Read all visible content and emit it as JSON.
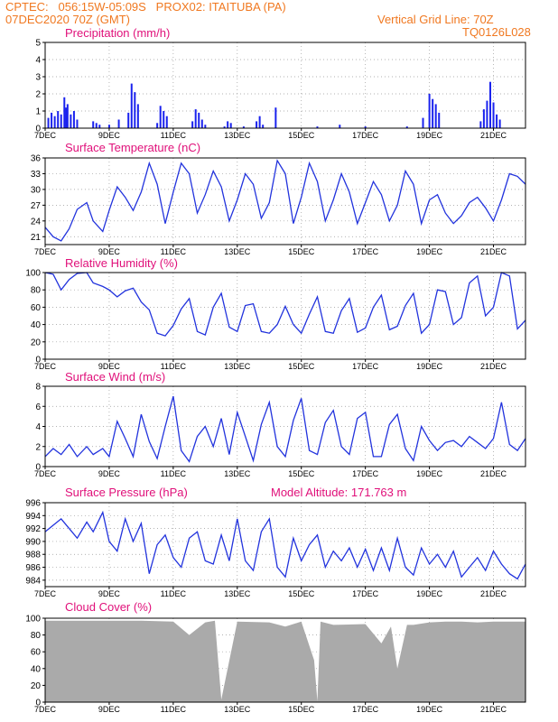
{
  "header": {
    "line1": "CPTEC:   056:15W-05:09S   PROX02: ITAITUBA (PA)",
    "line2_left": "07DEC2020 70Z (GMT)",
    "line2_right": "Vertical Grid Line: 70Z",
    "line3_right": "TQ0126L028"
  },
  "x_ticks": [
    "7DEC",
    "9DEC",
    "11DEC",
    "13DEC",
    "15DEC",
    "17DEC",
    "19DEC",
    "21DEC"
  ],
  "panels": {
    "precip": {
      "title": "Precipitation  (mm/h)"
    },
    "temp": {
      "title": "Surface Temperature  (nC)"
    },
    "rh": {
      "title": "Relative Humidity  (%)"
    },
    "wind": {
      "title": "Surface Wind  (m/s)"
    },
    "pres": {
      "title": "Surface Pressure  (hPa)",
      "note": "Model Altitude: 171.763  m"
    },
    "cloud": {
      "title": "Cloud Cover  (%)"
    }
  },
  "colors": {
    "line": "#2233dd",
    "bar": "#1a22ee",
    "cloud": "#aaaaaa",
    "title": "#e0107a",
    "header": "#f07820"
  },
  "chart_data": [
    {
      "type": "bar",
      "title": "Precipitation  (mm/h)",
      "ylim": [
        0,
        5
      ],
      "yticks": [
        0,
        1,
        2,
        3,
        4,
        5
      ],
      "x": [
        0.1,
        0.2,
        0.3,
        0.4,
        0.5,
        0.6,
        0.65,
        0.7,
        0.8,
        0.9,
        1.0,
        1.5,
        1.6,
        1.7,
        2.0,
        2.3,
        2.6,
        2.7,
        2.8,
        2.9,
        3.5,
        3.6,
        3.7,
        3.8,
        4.6,
        4.7,
        4.8,
        4.9,
        5.0,
        5.6,
        5.7,
        5.8,
        6.2,
        6.6,
        6.7,
        6.8,
        7.2,
        8.5,
        9.2,
        10.0,
        11.3,
        11.8,
        12.0,
        12.1,
        12.2,
        12.3,
        13.6,
        13.7,
        13.8,
        13.9,
        14.0,
        14.1,
        14.2
      ],
      "values": [
        0.6,
        0.9,
        0.7,
        1.0,
        0.8,
        1.8,
        1.2,
        1.4,
        0.8,
        1.0,
        0.5,
        0.4,
        0.3,
        0.2,
        0.2,
        0.5,
        0.9,
        2.6,
        2.1,
        1.4,
        0.3,
        1.3,
        1.0,
        0.7,
        0.4,
        1.1,
        0.9,
        0.5,
        0.2,
        0.1,
        0.4,
        0.3,
        0.1,
        0.4,
        0.7,
        0.2,
        1.2,
        0.1,
        0.2,
        0.1,
        0.1,
        0.6,
        2.0,
        1.7,
        1.4,
        0.9,
        0.4,
        1.1,
        1.6,
        2.7,
        1.5,
        0.8,
        0.5
      ]
    },
    {
      "type": "line",
      "title": "Surface Temperature  (nC)",
      "ylim": [
        19.5,
        36
      ],
      "yticks": [
        21,
        24,
        27,
        30,
        33,
        36
      ],
      "x": [
        0,
        0.25,
        0.5,
        0.75,
        1.0,
        1.3,
        1.5,
        1.8,
        2.0,
        2.25,
        2.5,
        2.75,
        3.0,
        3.25,
        3.5,
        3.75,
        4.0,
        4.25,
        4.5,
        4.75,
        5.0,
        5.25,
        5.5,
        5.75,
        6.0,
        6.25,
        6.5,
        6.75,
        7.0,
        7.25,
        7.5,
        7.75,
        8.0,
        8.25,
        8.5,
        8.75,
        9.0,
        9.25,
        9.5,
        9.75,
        10.0,
        10.25,
        10.5,
        10.75,
        11.0,
        11.25,
        11.5,
        11.75,
        12.0,
        12.25,
        12.5,
        12.75,
        13.0,
        13.25,
        13.5,
        13.75,
        14.0,
        14.25,
        14.5,
        14.75,
        15.0
      ],
      "values": [
        22.8,
        21.0,
        20.2,
        22.5,
        26.2,
        27.5,
        24.0,
        22.0,
        26.0,
        30.5,
        28.5,
        26.0,
        29.5,
        35.0,
        31.0,
        23.5,
        29.5,
        35.0,
        33.0,
        25.5,
        29.0,
        33.5,
        30.5,
        24.0,
        28.0,
        33.0,
        31.0,
        24.5,
        27.5,
        35.5,
        33.0,
        23.5,
        28.5,
        35.0,
        31.5,
        24.0,
        28.0,
        33.0,
        29.5,
        23.5,
        27.5,
        31.5,
        29.0,
        24.0,
        27.0,
        33.5,
        31.0,
        23.5,
        28.0,
        29.0,
        25.5,
        23.5,
        25.0,
        27.5,
        28.5,
        26.5,
        24.0,
        28.0,
        33.0,
        32.5,
        31.0
      ]
    },
    {
      "type": "line",
      "title": "Relative Humidity  (%)",
      "ylim": [
        0,
        100
      ],
      "yticks": [
        0,
        20,
        40,
        60,
        80,
        100
      ],
      "x": [
        0,
        0.25,
        0.5,
        0.75,
        1.0,
        1.3,
        1.5,
        1.8,
        2.0,
        2.25,
        2.5,
        2.75,
        3.0,
        3.25,
        3.5,
        3.75,
        4.0,
        4.25,
        4.5,
        4.75,
        5.0,
        5.25,
        5.5,
        5.75,
        6.0,
        6.25,
        6.5,
        6.75,
        7.0,
        7.25,
        7.5,
        7.75,
        8.0,
        8.25,
        8.5,
        8.75,
        9.0,
        9.25,
        9.5,
        9.75,
        10.0,
        10.25,
        10.5,
        10.75,
        11.0,
        11.25,
        11.5,
        11.75,
        12.0,
        12.25,
        12.5,
        12.75,
        13.0,
        13.25,
        13.5,
        13.75,
        14.0,
        14.25,
        14.5,
        14.75,
        15.0
      ],
      "values": [
        100,
        98,
        80,
        92,
        99,
        100,
        88,
        84,
        80,
        72,
        79,
        82,
        66,
        57,
        30,
        27,
        39,
        58,
        70,
        32,
        28,
        60,
        76,
        37,
        32,
        62,
        64,
        32,
        30,
        40,
        61,
        40,
        30,
        52,
        72,
        32,
        30,
        56,
        70,
        31,
        36,
        60,
        74,
        34,
        38,
        62,
        76,
        30,
        40,
        80,
        78,
        40,
        48,
        88,
        96,
        50,
        60,
        100,
        96,
        35,
        45
      ]
    },
    {
      "type": "line",
      "title": "Surface Wind  (m/s)",
      "ylim": [
        0,
        8
      ],
      "yticks": [
        0,
        2,
        4,
        6,
        8
      ],
      "x": [
        0,
        0.25,
        0.5,
        0.75,
        1.0,
        1.3,
        1.5,
        1.8,
        2.0,
        2.25,
        2.5,
        2.75,
        3.0,
        3.25,
        3.5,
        3.75,
        4.0,
        4.25,
        4.5,
        4.75,
        5.0,
        5.25,
        5.5,
        5.75,
        6.0,
        6.25,
        6.5,
        6.75,
        7.0,
        7.25,
        7.5,
        7.75,
        8.0,
        8.25,
        8.5,
        8.75,
        9.0,
        9.25,
        9.5,
        9.75,
        10.0,
        10.25,
        10.5,
        10.75,
        11.0,
        11.25,
        11.5,
        11.75,
        12.0,
        12.25,
        12.5,
        12.75,
        13.0,
        13.25,
        13.5,
        13.75,
        14.0,
        14.25,
        14.5,
        14.75,
        15.0
      ],
      "values": [
        1.0,
        1.8,
        1.2,
        2.2,
        1.0,
        2.0,
        1.2,
        1.8,
        1.0,
        4.5,
        2.8,
        1.0,
        5.2,
        2.5,
        0.8,
        4.0,
        7.0,
        1.6,
        0.5,
        3.0,
        4.0,
        2.0,
        4.8,
        1.2,
        5.4,
        3.0,
        0.6,
        4.2,
        6.4,
        2.0,
        1.0,
        4.6,
        6.8,
        1.6,
        1.2,
        4.4,
        5.6,
        2.0,
        1.2,
        4.8,
        5.4,
        1.0,
        1.0,
        4.2,
        5.2,
        1.8,
        0.6,
        4.0,
        2.6,
        1.6,
        2.4,
        2.6,
        2.0,
        3.0,
        2.4,
        1.8,
        2.8,
        6.4,
        2.2,
        1.6,
        2.8
      ]
    },
    {
      "type": "line",
      "title": "Surface Pressure  (hPa)",
      "ylim": [
        983,
        996
      ],
      "yticks": [
        984,
        986,
        988,
        990,
        992,
        994,
        996
      ],
      "x": [
        0,
        0.25,
        0.5,
        0.75,
        1.0,
        1.3,
        1.5,
        1.8,
        2.0,
        2.25,
        2.5,
        2.75,
        3.0,
        3.25,
        3.5,
        3.75,
        4.0,
        4.25,
        4.5,
        4.75,
        5.0,
        5.25,
        5.5,
        5.75,
        6.0,
        6.25,
        6.5,
        6.75,
        7.0,
        7.25,
        7.5,
        7.75,
        8.0,
        8.25,
        8.5,
        8.75,
        9.0,
        9.25,
        9.5,
        9.75,
        10.0,
        10.25,
        10.5,
        10.75,
        11.0,
        11.25,
        11.5,
        11.75,
        12.0,
        12.25,
        12.5,
        12.75,
        13.0,
        13.25,
        13.5,
        13.75,
        14.0,
        14.25,
        14.5,
        14.75,
        15.0
      ],
      "values": [
        991.5,
        992.5,
        993.5,
        992.0,
        990.5,
        993.0,
        991.5,
        994.5,
        990.0,
        988.5,
        993.5,
        990.0,
        992.8,
        985.0,
        989.5,
        991.0,
        987.5,
        986.0,
        990.5,
        991.5,
        987.0,
        986.5,
        991.0,
        987.0,
        993.5,
        987.0,
        985.5,
        991.5,
        993.5,
        986.0,
        984.5,
        990.5,
        987.0,
        989.5,
        991.0,
        986.0,
        988.5,
        987.0,
        989.0,
        986.0,
        988.8,
        985.5,
        989.0,
        985.5,
        990.5,
        986.0,
        984.8,
        989.0,
        986.5,
        988.0,
        986.0,
        988.5,
        984.5,
        986.0,
        987.5,
        985.5,
        988.5,
        986.5,
        985.0,
        984.2,
        986.5
      ]
    },
    {
      "type": "area",
      "title": "Cloud Cover  (%)",
      "ylim": [
        0,
        100
      ],
      "yticks": [
        0,
        20,
        40,
        60,
        80,
        100
      ],
      "x": [
        0,
        1.0,
        2.0,
        3.0,
        4.0,
        4.5,
        5.0,
        5.3,
        5.5,
        6.0,
        7.0,
        7.5,
        8.0,
        8.4,
        8.5,
        8.6,
        9.0,
        10.0,
        10.5,
        10.8,
        11.0,
        11.3,
        11.5,
        12.0,
        12.5,
        13.0,
        13.5,
        14.0,
        15.0
      ],
      "values": [
        97,
        97,
        97,
        97,
        96,
        80,
        95,
        97,
        3,
        96,
        95,
        90,
        96,
        50,
        1,
        96,
        92,
        93,
        70,
        90,
        40,
        92,
        92,
        95,
        96,
        96,
        95,
        96,
        96
      ]
    }
  ]
}
